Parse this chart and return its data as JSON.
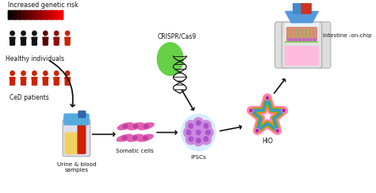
{
  "background_color": "#ffffff",
  "labels": {
    "increased_risk": "Increased genetic risk",
    "healthy": "Healthy individuals",
    "ced": "CeD patients",
    "urine_blood": "Urine & blood\nsamples",
    "somatic": "Somatic cells",
    "ipscs": "iPSCs",
    "crispr": "CRISPR/Cas9",
    "hio": "HIO",
    "intestine": "Intestine -on-chip"
  },
  "colors": {
    "black_person": "#111111",
    "dark_red1": "#4a0000",
    "dark_red2": "#7a0000",
    "red_person": "#cc2200",
    "arrow": "#111111",
    "urine_yellow": "#f0d060",
    "blood_red": "#cc2200",
    "tube_blue": "#55aadd",
    "tube_dark_blue": "#3366aa",
    "tube_body": "#ddddee",
    "somatic_pink": "#e060b0",
    "somatic_dark": "#c040a0",
    "ipsc_purple": "#cc88dd",
    "ipsc_dark": "#aa55cc",
    "ipsc_bg": "#c8e8ff",
    "hio_pink": "#ff88cc",
    "hio_fill": "#ffeef8",
    "hio_orange": "#ff8800",
    "hio_green": "#44bb44",
    "hio_blue": "#4488ff",
    "hio_red": "#ee4444",
    "crispr_green": "#55cc33",
    "dna_dark": "#222222",
    "chip_blue": "#4488cc",
    "chip_funnel_blue": "#5599dd",
    "chip_red": "#cc3322",
    "chip_pink": "#ffbbdd",
    "chip_villi_pink": "#dd8877",
    "chip_villi_green": "#88cc55",
    "chip_villi_purple": "#bb66cc",
    "chip_bg": "#e8f4ff",
    "chip_gray": "#e0e0e0",
    "chip_outline": "#aaaaaa",
    "chip_side_gray": "#dddddd"
  },
  "figsize": [
    4.74,
    2.44
  ],
  "dpi": 100
}
